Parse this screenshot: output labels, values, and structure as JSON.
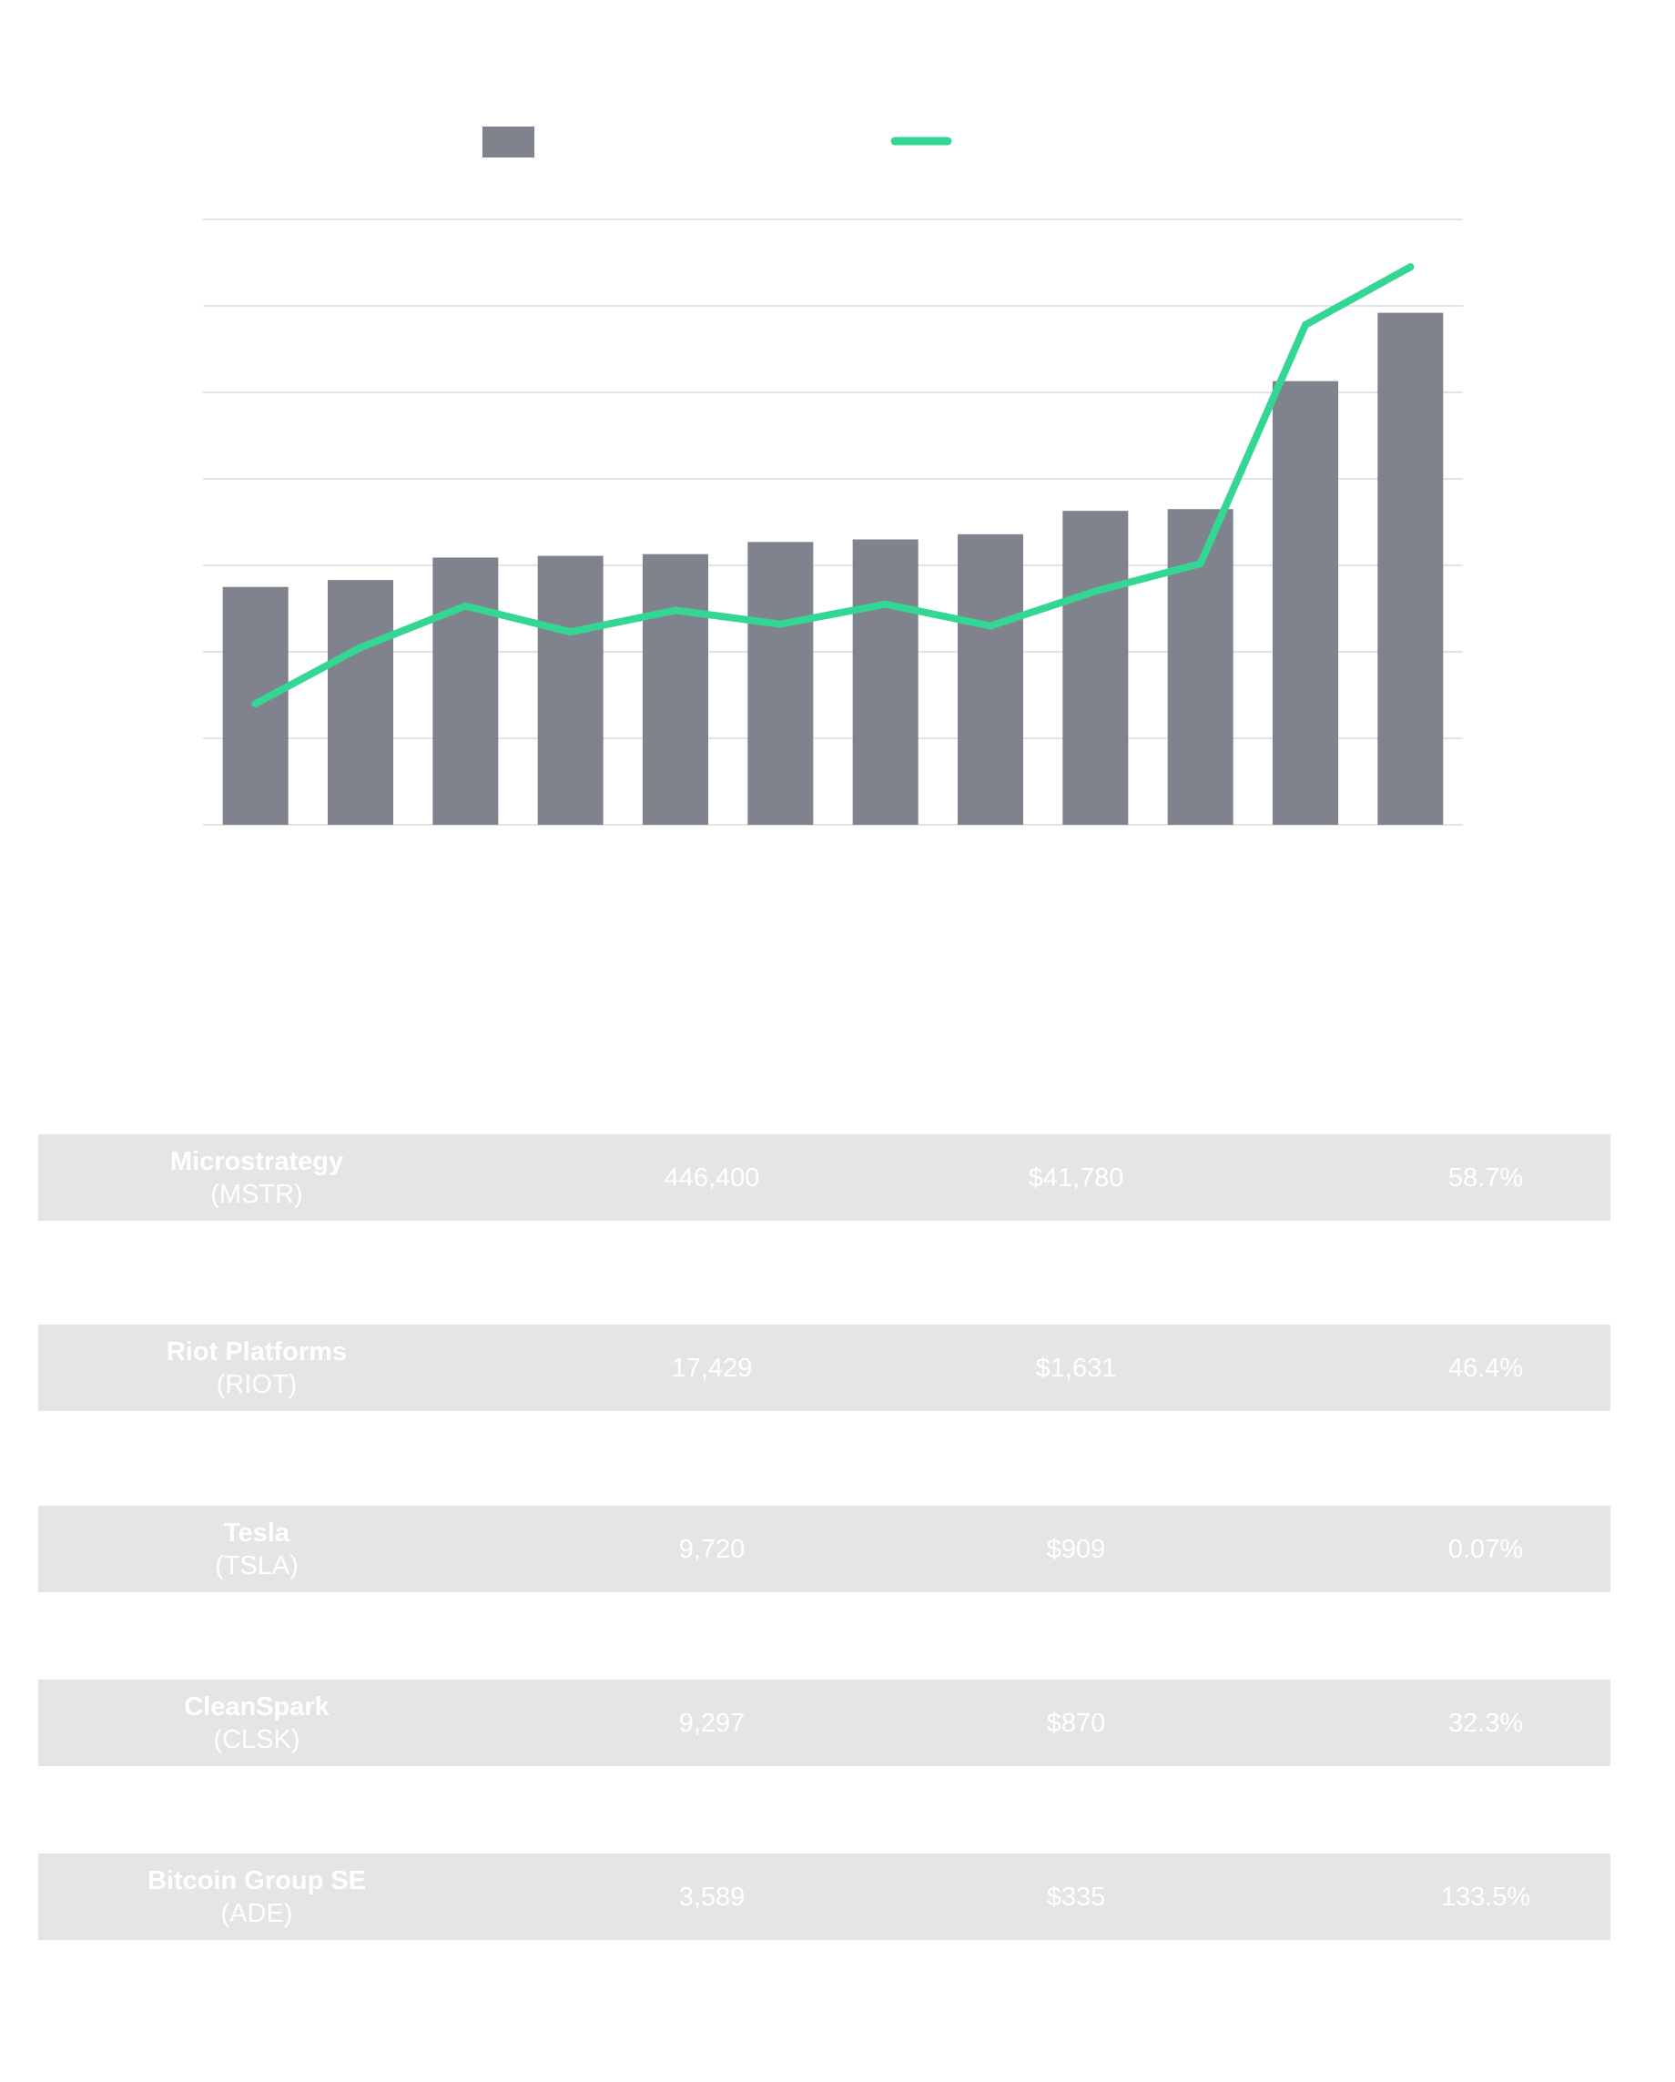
{
  "chart_data": {
    "type": "bar",
    "legend": {
      "placement": "top-center",
      "entries": [
        {
          "series": "bars",
          "marker": "square",
          "color": "#80838d"
        },
        {
          "series": "line",
          "marker": "line",
          "color": "#33d692"
        }
      ]
    },
    "grid": true,
    "ylim": [
      0,
      7
    ],
    "y2lim": [
      0,
      7
    ],
    "categories": [
      "",
      "",
      "",
      "",
      "",
      "",
      "",
      "",
      "",
      "",
      "",
      ""
    ],
    "series": [
      {
        "kind": "bar",
        "color": "#80838d",
        "values": [
          2.75,
          2.83,
          3.09,
          3.11,
          3.13,
          3.27,
          3.3,
          3.36,
          3.63,
          3.65,
          5.13,
          5.92
        ]
      },
      {
        "kind": "line",
        "color": "#33d692",
        "values": [
          1.4,
          2.05,
          2.53,
          2.23,
          2.48,
          2.32,
          2.55,
          2.3,
          2.7,
          3.02,
          5.78,
          6.45
        ]
      }
    ]
  },
  "table": {
    "rows": [
      {
        "name": "Microstrategy",
        "ticker": "(MSTR)",
        "holdings": "446,400",
        "value": "$41,780",
        "pct": "58.7%"
      },
      {
        "name": "Riot Platforms",
        "ticker": "(RIOT)",
        "holdings": "17,429",
        "value": "$1,631",
        "pct": "46.4%"
      },
      {
        "name": "Tesla",
        "ticker": "(TSLA)",
        "holdings": "9,720",
        "value": "$909",
        "pct": "0.07%"
      },
      {
        "name": "CleanSpark",
        "ticker": "(CLSK)",
        "holdings": "9,297",
        "value": "$870",
        "pct": "32.3%"
      },
      {
        "name": "Bitcoin Group SE",
        "ticker": "(ADE)",
        "holdings": "3,589",
        "value": "$335",
        "pct": "133.5%"
      }
    ]
  }
}
